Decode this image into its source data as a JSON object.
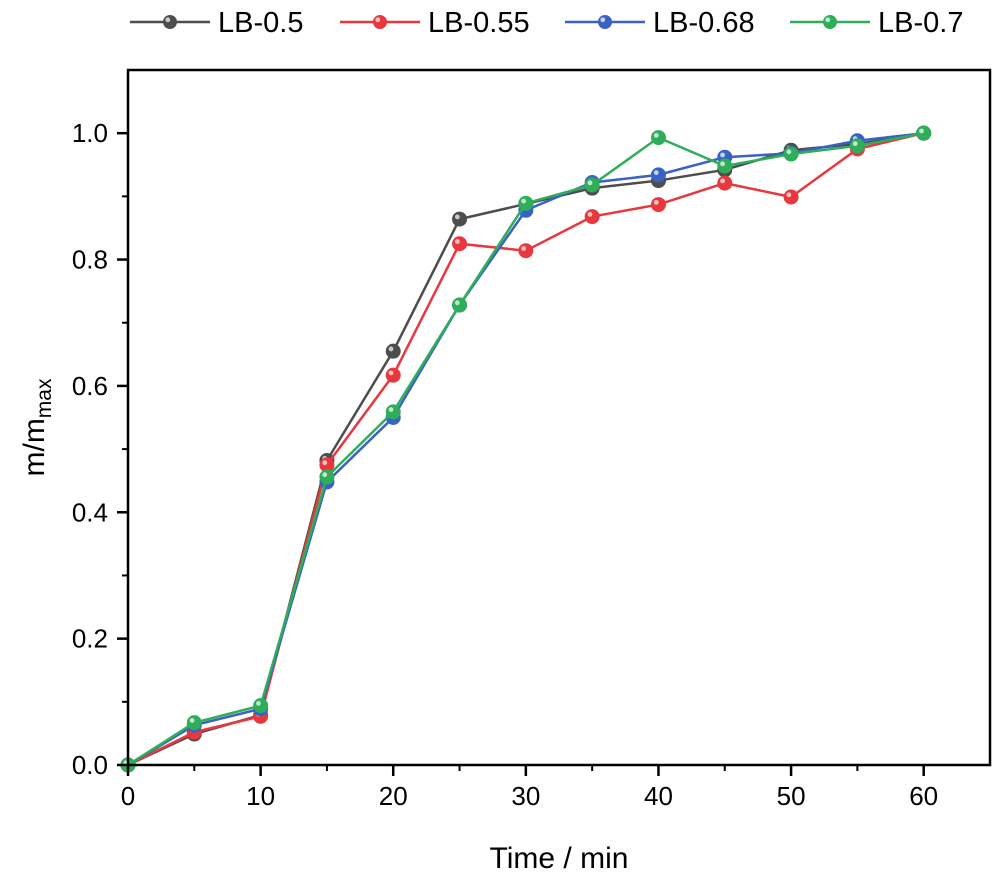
{
  "chart_data": {
    "type": "line",
    "title": "",
    "xlabel": "Time / min",
    "ylabel": {
      "main": "m/m",
      "subscript": "max"
    },
    "xlim": [
      0,
      65
    ],
    "ylim": [
      0,
      1.1
    ],
    "xticks": [
      0,
      10,
      20,
      30,
      40,
      50,
      60
    ],
    "xtick_labels": [
      "0",
      "10",
      "20",
      "30",
      "40",
      "50",
      "60"
    ],
    "yticks": [
      0,
      0.2,
      0.4,
      0.6,
      0.8,
      1.0
    ],
    "ytick_labels": [
      "0.0",
      "0.2",
      "0.4",
      "0.6",
      "0.8",
      "1.0"
    ],
    "grid": false,
    "legend_position": "top",
    "x": [
      0,
      5,
      10,
      15,
      20,
      25,
      30,
      35,
      40,
      45,
      50,
      55,
      60
    ],
    "series": [
      {
        "name": "LB-0.5",
        "color": "#4d4d4d",
        "values": [
          0.0,
          0.049,
          0.079,
          0.482,
          0.655,
          0.864,
          0.888,
          0.913,
          0.925,
          0.942,
          0.973,
          0.983,
          1.0
        ]
      },
      {
        "name": "LB-0.55",
        "color": "#e8383d",
        "values": [
          0.0,
          0.052,
          0.077,
          0.475,
          0.617,
          0.825,
          0.814,
          0.868,
          0.887,
          0.921,
          0.899,
          0.975,
          1.0
        ]
      },
      {
        "name": "LB-0.68",
        "color": "#3a62c4",
        "values": [
          0.0,
          0.063,
          0.089,
          0.448,
          0.55,
          0.728,
          0.878,
          0.922,
          0.934,
          0.962,
          0.968,
          0.988,
          1.0
        ]
      },
      {
        "name": "LB-0.7",
        "color": "#2fae5a",
        "values": [
          0.0,
          0.067,
          0.094,
          0.456,
          0.559,
          0.728,
          0.889,
          0.918,
          0.993,
          0.948,
          0.967,
          0.98,
          1.0
        ]
      }
    ]
  }
}
